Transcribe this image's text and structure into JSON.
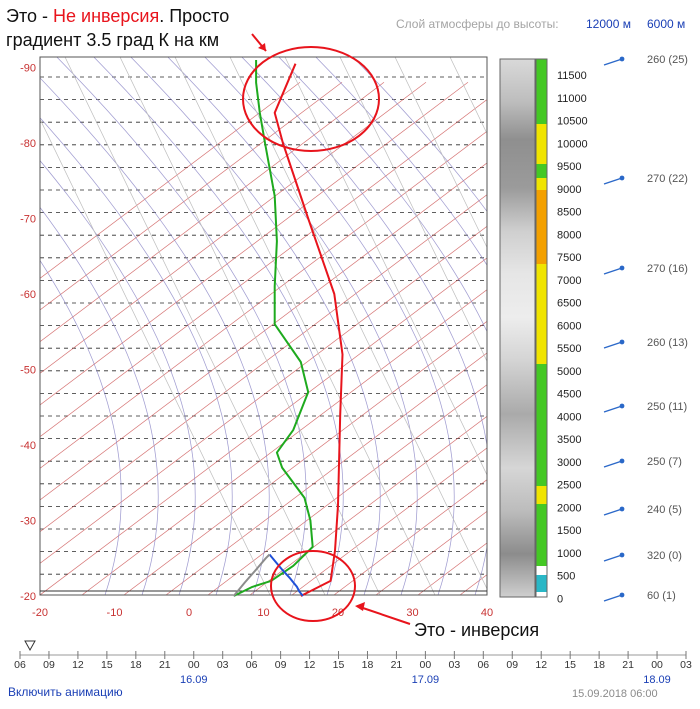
{
  "annotations": {
    "top_line1_prefix": "Это - ",
    "top_line1_red": "Не инверсия",
    "top_line1_suffix": ". Просто",
    "top_line2": "градиент 3.5 град К на км",
    "bottom": "Это - инверсия"
  },
  "header": {
    "layer_label": "Слой атмосферы до высоты:",
    "option_a": "12000 м",
    "option_b": "6000 м"
  },
  "chart_data": {
    "type": "line",
    "subtype": "aerological-diagram",
    "title": "",
    "xlabel": "",
    "ylabel": "",
    "x_ticks": [
      -20,
      -10,
      0,
      10,
      20,
      30,
      40
    ],
    "y_ticks": [
      -20,
      -30,
      -40,
      -50,
      -60,
      -70,
      -80,
      -90
    ],
    "xlim": [
      -20,
      40
    ],
    "ylim": [
      -20,
      -92
    ],
    "series": [
      {
        "name": "",
        "color": "#e8141c",
        "points": [
          [
            15,
            -20
          ],
          [
            19,
            -22
          ],
          [
            19.6,
            -26
          ],
          [
            20,
            -32
          ],
          [
            20.3,
            -44
          ],
          [
            20.6,
            -52
          ],
          [
            19.5,
            -60
          ],
          [
            16,
            -70
          ],
          [
            12.6,
            -80
          ],
          [
            11.5,
            -84
          ],
          [
            14.3,
            -90.5
          ]
        ]
      },
      {
        "name": "",
        "color": "#1eaa1e",
        "points": [
          [
            6,
            -20
          ],
          [
            8.5,
            -21.2
          ],
          [
            11,
            -22
          ],
          [
            14,
            -24
          ],
          [
            16.6,
            -26.5
          ],
          [
            16.3,
            -30
          ],
          [
            15.5,
            -33
          ],
          [
            12.5,
            -37
          ],
          [
            11.8,
            -39
          ],
          [
            14,
            -42
          ],
          [
            16,
            -47
          ],
          [
            15,
            -51
          ],
          [
            11.5,
            -56
          ],
          [
            11.5,
            -61
          ],
          [
            11.8,
            -67
          ],
          [
            11.5,
            -73
          ],
          [
            10.2,
            -80
          ],
          [
            9.5,
            -84
          ],
          [
            9,
            -88
          ],
          [
            9,
            -91
          ]
        ]
      },
      {
        "name": "",
        "color": "#2050d8",
        "points": [
          [
            10.8,
            -25.5
          ],
          [
            12.5,
            -23.5
          ],
          [
            13.6,
            -22.3
          ],
          [
            14,
            -21.8
          ],
          [
            14.5,
            -21.2
          ],
          [
            14.8,
            -20.6
          ],
          [
            15.3,
            -20
          ]
        ]
      },
      {
        "name": "",
        "color": "#8c8c8c",
        "points": [
          [
            6,
            -20
          ],
          [
            7.5,
            -21.8
          ],
          [
            9,
            -23.5
          ],
          [
            10.3,
            -25
          ],
          [
            10.8,
            -25.5
          ]
        ]
      }
    ],
    "height_scale": {
      "labels": [
        "11500",
        "11000",
        "10500",
        "10000",
        "9500",
        "9000",
        "8500",
        "8000",
        "7500",
        "7000",
        "6500",
        "6000",
        "5500",
        "5000",
        "4500",
        "4000",
        "3500",
        "3000",
        "2500",
        "2000",
        "1500",
        "1000",
        "500",
        "0"
      ]
    },
    "wind": [
      {
        "label": "260 (25)"
      },
      {
        "label": "270 (22)"
      },
      {
        "label": "270 (16)"
      },
      {
        "label": "260 (13)"
      },
      {
        "label": "250 (11)"
      },
      {
        "label": "250 (7)"
      },
      {
        "label": "240 (5)"
      },
      {
        "label": "320 (0)"
      },
      {
        "label": "60 (1)"
      }
    ],
    "time_axis": {
      "hours": [
        "06",
        "09",
        "12",
        "15",
        "18",
        "21",
        "00",
        "03",
        "06",
        "09",
        "12",
        "15",
        "18",
        "21",
        "00",
        "03",
        "06",
        "09",
        "12",
        "15",
        "18",
        "21",
        "00",
        "03"
      ],
      "dates": [
        "16.09",
        "17.09",
        "18.09"
      ]
    }
  },
  "footer": {
    "animation_link": "Включить анимацию",
    "timestamp": "15.09.2018 06:00"
  },
  "colors": {
    "temperature": "#e8141c",
    "dewpoint": "#1eaa1e",
    "annotation": "#e8141c",
    "accent": "#1a3fb5"
  }
}
